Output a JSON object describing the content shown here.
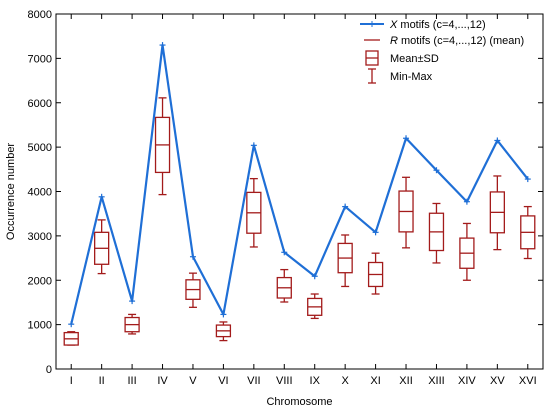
{
  "chart_data": {
    "type": "line",
    "title": "",
    "xlabel": "Chromosome",
    "ylabel": "Occurrence number",
    "ylim": [
      0,
      8000
    ],
    "yticks": [
      0,
      1000,
      2000,
      3000,
      4000,
      5000,
      6000,
      7000,
      8000
    ],
    "grid": false,
    "legend_position": "top-right",
    "categories": [
      "I",
      "II",
      "III",
      "IV",
      "V",
      "VI",
      "VII",
      "VIII",
      "IX",
      "X",
      "XI",
      "XII",
      "XIII",
      "XIV",
      "XV",
      "XVI"
    ],
    "series": [
      {
        "name_prefix": "X",
        "name_suffix": " motifs (c=4,...,12)",
        "kind": "line",
        "color": "#1f6fd6",
        "values": [
          1010,
          3880,
          1530,
          7300,
          2530,
          1230,
          5040,
          2630,
          2090,
          3660,
          3080,
          5200,
          4480,
          3770,
          5150,
          4280
        ]
      },
      {
        "name_prefix": "R",
        "name_suffix": " motifs (c=4,...,12) (mean)",
        "kind": "box",
        "color": "#a31b1b",
        "mean": [
          680,
          2720,
          1000,
          5050,
          1790,
          860,
          3520,
          1830,
          1400,
          2500,
          2130,
          3550,
          3090,
          2610,
          3530,
          3080
        ],
        "sd": [
          140,
          360,
          160,
          620,
          220,
          130,
          460,
          230,
          190,
          330,
          270,
          460,
          420,
          340,
          460,
          370
        ],
        "min": [
          540,
          2150,
          790,
          3930,
          1390,
          640,
          2750,
          1510,
          1140,
          1860,
          1690,
          2730,
          2390,
          2000,
          2690,
          2490
        ],
        "max": [
          840,
          3360,
          1230,
          6110,
          2160,
          1060,
          4290,
          2240,
          1690,
          3020,
          2610,
          4320,
          3730,
          3280,
          4350,
          3660
        ]
      }
    ],
    "legend_extra": [
      "Mean±SD",
      "Min-Max"
    ]
  }
}
